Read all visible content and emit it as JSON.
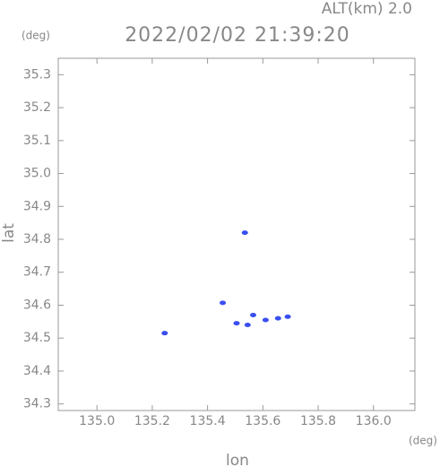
{
  "chart_data": {
    "type": "scatter",
    "title": "2022/02/02 21:39:20",
    "subtitle": "ALT(km) 2.0",
    "x_unit": "(deg)",
    "y_unit": "(deg)",
    "x_label": "lon",
    "y_label": "lat",
    "color": "#3a4ff0",
    "x": [
      135.245,
      135.455,
      135.565,
      135.545,
      135.505,
      135.61,
      135.655,
      135.69,
      135.535
    ],
    "values": [
      34.515,
      34.607,
      34.57,
      34.54,
      34.545,
      34.555,
      34.56,
      34.565,
      34.82
    ],
    "xlim": [
      134.86,
      136.15
    ],
    "ylim": [
      34.28,
      35.35
    ],
    "xticks": [
      {
        "value": 135.0,
        "label": "135.0"
      },
      135.2,
      135.4,
      135.6,
      135.8,
      {
        "value": 136.0,
        "label": "136.0"
      }
    ],
    "yticks": [
      34.3,
      34.4,
      34.5,
      34.6,
      34.7,
      34.8,
      34.9,
      {
        "value": 35.0,
        "label": "35.0"
      },
      35.1,
      35.2,
      35.3
    ]
  }
}
